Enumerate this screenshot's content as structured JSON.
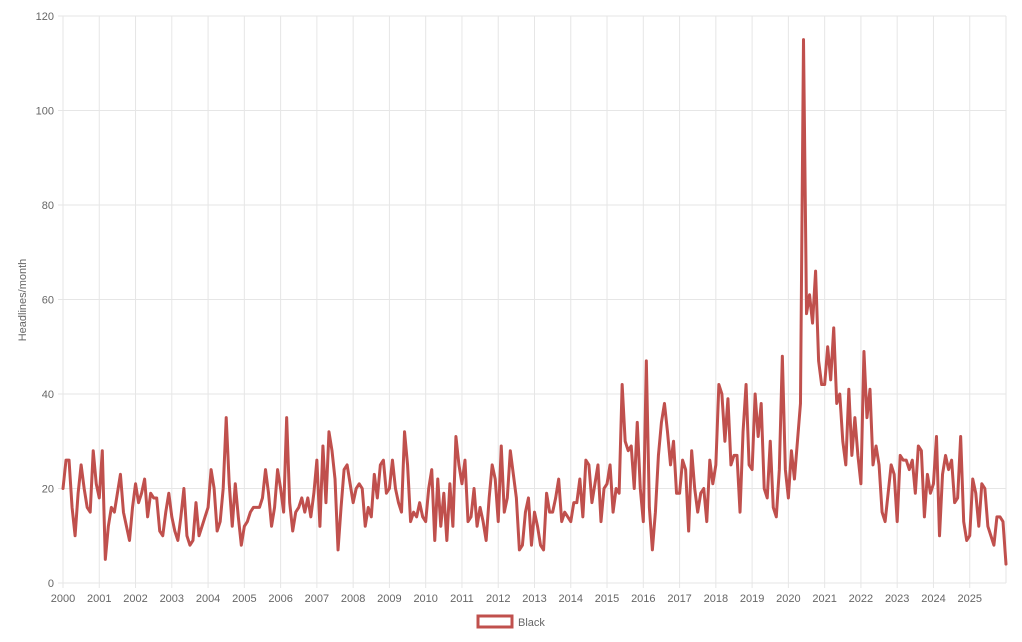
{
  "chart_data": {
    "type": "line",
    "title": "",
    "xlabel": "",
    "ylabel": "Headlines/month",
    "ylim": [
      0,
      120
    ],
    "yticks": [
      0,
      20,
      40,
      60,
      80,
      100,
      120
    ],
    "xticks": [
      "2000",
      "2001",
      "2002",
      "2003",
      "2004",
      "2005",
      "2006",
      "2007",
      "2008",
      "2009",
      "2010",
      "2011",
      "2012",
      "2013",
      "2014",
      "2015",
      "2016",
      "2017",
      "2018",
      "2019",
      "2020",
      "2021",
      "2022",
      "2023",
      "2024",
      "2025"
    ],
    "x_start": "2000-01",
    "x_end": "2025-12",
    "grid": true,
    "legend": "bottom",
    "colors": {
      "series": "#c0504d",
      "grid": "#e6e6e6",
      "text": "#666666"
    },
    "series": [
      {
        "name": "Black",
        "values": [
          20,
          26,
          26,
          16,
          10,
          19,
          25,
          20,
          16,
          15,
          28,
          21,
          18,
          28,
          5,
          12,
          16,
          15,
          19,
          23,
          15,
          12,
          9,
          16,
          21,
          17,
          19,
          22,
          14,
          19,
          18,
          18,
          11,
          10,
          15,
          19,
          14,
          11,
          9,
          14,
          20,
          10,
          8,
          9,
          17,
          10,
          12,
          14,
          16,
          24,
          20,
          11,
          13,
          20,
          35,
          21,
          12,
          21,
          14,
          8,
          12,
          13,
          15,
          16,
          16,
          16,
          18,
          24,
          19,
          12,
          16,
          24,
          20,
          15,
          35,
          17,
          11,
          15,
          16,
          18,
          15,
          18,
          14,
          19,
          26,
          12,
          29,
          17,
          32,
          28,
          22,
          7,
          16,
          24,
          25,
          21,
          17,
          20,
          21,
          20,
          12,
          16,
          14,
          23,
          18,
          25,
          26,
          19,
          20,
          26,
          20,
          17,
          15,
          32,
          25,
          13,
          15,
          14,
          17,
          14,
          13,
          20,
          24,
          9,
          22,
          12,
          19,
          9,
          21,
          12,
          31,
          25,
          21,
          26,
          13,
          14,
          20,
          12,
          16,
          13,
          9,
          18,
          25,
          22,
          13,
          29,
          15,
          18,
          28,
          23,
          18,
          7,
          8,
          15,
          18,
          8,
          15,
          12,
          8,
          7,
          19,
          15,
          15,
          18,
          22,
          13,
          15,
          14,
          13,
          17,
          17,
          22,
          14,
          26,
          25,
          17,
          21,
          25,
          13,
          20,
          21,
          25,
          15,
          20,
          19,
          42,
          30,
          28,
          29,
          20,
          34,
          20,
          13,
          47,
          16,
          7,
          15,
          27,
          34,
          38,
          32,
          25,
          30,
          19,
          19,
          26,
          24,
          11,
          28,
          20,
          15,
          19,
          20,
          13,
          26,
          21,
          25,
          42,
          40,
          30,
          39,
          25,
          27,
          27,
          15,
          32,
          42,
          25,
          24,
          40,
          31,
          38,
          20,
          18,
          30,
          16,
          14,
          24,
          48,
          24,
          18,
          28,
          22,
          30,
          38,
          115,
          57,
          61,
          55,
          66,
          47,
          42,
          42,
          50,
          43,
          54,
          38,
          40,
          30,
          25,
          41,
          27,
          35,
          27,
          21,
          49,
          35,
          41,
          25,
          29,
          25,
          15,
          13,
          19,
          25,
          23,
          13,
          27,
          26,
          26,
          24,
          26,
          19,
          29,
          28,
          14,
          23,
          19,
          21,
          31,
          10,
          23,
          27,
          24,
          26,
          17,
          18,
          31,
          13,
          9,
          10,
          22,
          19,
          12,
          21,
          20,
          12,
          10,
          8,
          14,
          14,
          13,
          4
        ]
      }
    ]
  }
}
